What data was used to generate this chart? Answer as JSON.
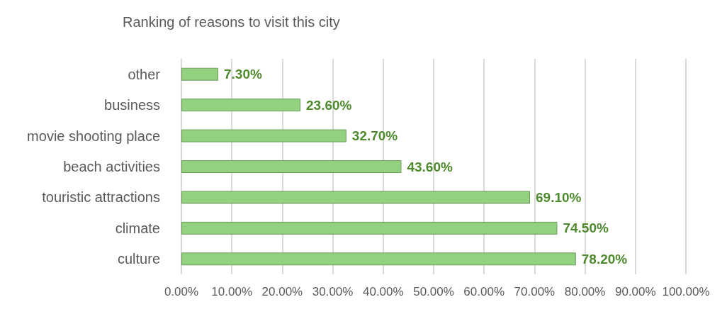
{
  "chart_data": {
    "type": "bar",
    "orientation": "horizontal",
    "title": "Ranking of reasons to visit this city",
    "categories": [
      "other",
      "business",
      "movie shooting place",
      "beach activities",
      "touristic attractions",
      "climate",
      "culture"
    ],
    "values": [
      7.3,
      23.6,
      32.7,
      43.6,
      69.1,
      74.5,
      78.2
    ],
    "value_labels": [
      "7.30%",
      "23.60%",
      "32.70%",
      "43.60%",
      "69.10%",
      "74.50%",
      "78.20%"
    ],
    "color": "#92d17f",
    "xlim": [
      0,
      100
    ],
    "xticks": [
      {
        "value": 0,
        "label": "0.00%"
      },
      {
        "value": 10,
        "label": "10.00%"
      },
      {
        "value": 20,
        "label": "20.00%"
      },
      {
        "value": 30,
        "label": "30.00%"
      },
      {
        "value": 40,
        "label": "40.00%"
      },
      {
        "value": 50,
        "label": "50.00%"
      },
      {
        "value": 60,
        "label": "60.00%"
      },
      {
        "value": 70,
        "label": "70.00%"
      },
      {
        "value": 80,
        "label": "80.00%"
      },
      {
        "value": 90,
        "label": "90.00%"
      },
      {
        "value": 100,
        "label": "100.00%"
      }
    ],
    "grid": "x"
  }
}
